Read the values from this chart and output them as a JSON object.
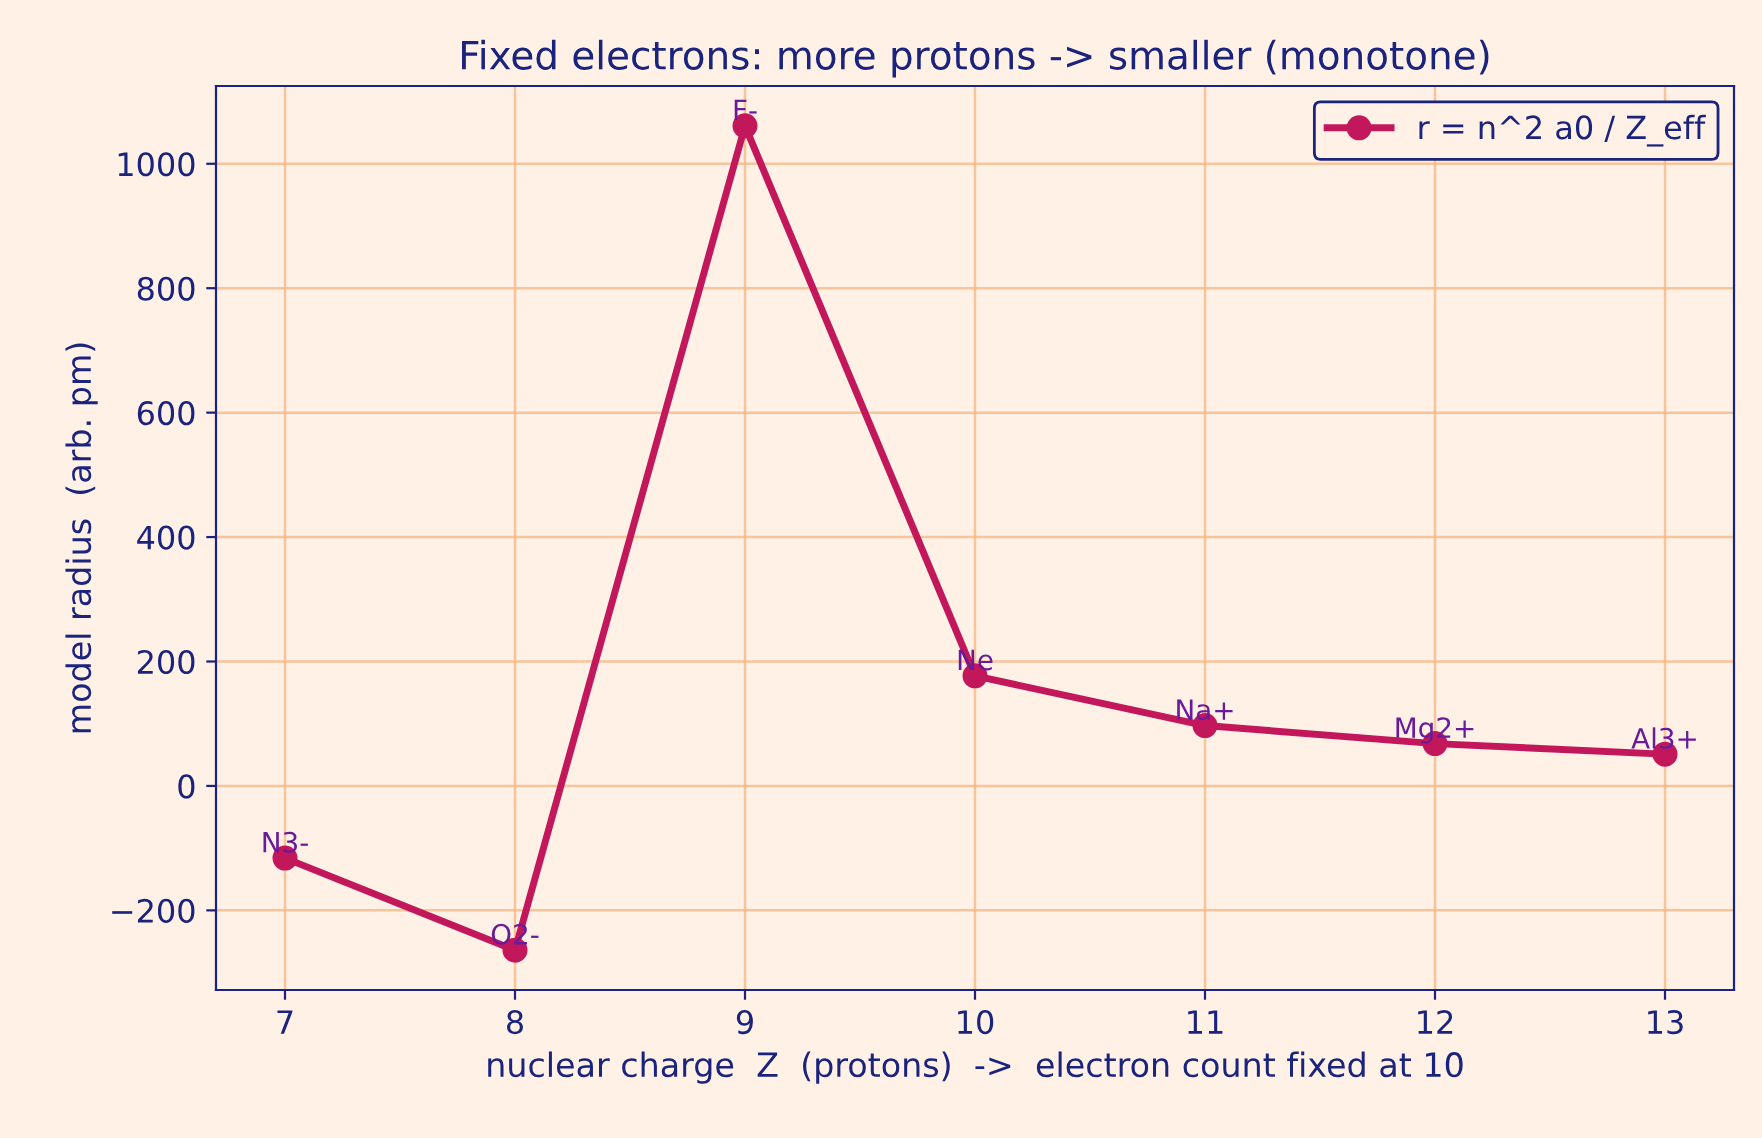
{
  "chart_data": {
    "type": "line",
    "title": "Fixed electrons: more protons -> smaller (monotone)",
    "xlabel": "nuclear charge  Z  (protons)  ->  electron count fixed at 10",
    "ylabel": "model radius  (arb. pm)",
    "x": [
      7,
      8,
      9,
      10,
      11,
      12,
      13
    ],
    "series": [
      {
        "name": "r = n^2 a0 / Z_eff",
        "color": "#c2185b",
        "values": [
          -116,
          -264,
          1061,
          177,
          97,
          68,
          51
        ]
      }
    ],
    "annotations": [
      {
        "text": "N3-",
        "x": 7,
        "y": -116
      },
      {
        "text": "O2-",
        "x": 8,
        "y": -264
      },
      {
        "text": "F-",
        "x": 9,
        "y": 1061
      },
      {
        "text": "Ne",
        "x": 10,
        "y": 177
      },
      {
        "text": "Na+",
        "x": 11,
        "y": 97
      },
      {
        "text": "Mg2+",
        "x": 12,
        "y": 68
      },
      {
        "text": "Al3+",
        "x": 13,
        "y": 51
      }
    ],
    "xlim": [
      6.7,
      13.3
    ],
    "ylim": [
      -328,
      1125
    ],
    "xticks": [
      7,
      8,
      9,
      10,
      11,
      12,
      13
    ],
    "yticks": [
      {
        "value": -200,
        "label": "−200"
      },
      0,
      200,
      400,
      600,
      800,
      1000
    ],
    "grid": true,
    "legend": "top right",
    "marker": "circle",
    "line_style": "solid"
  }
}
